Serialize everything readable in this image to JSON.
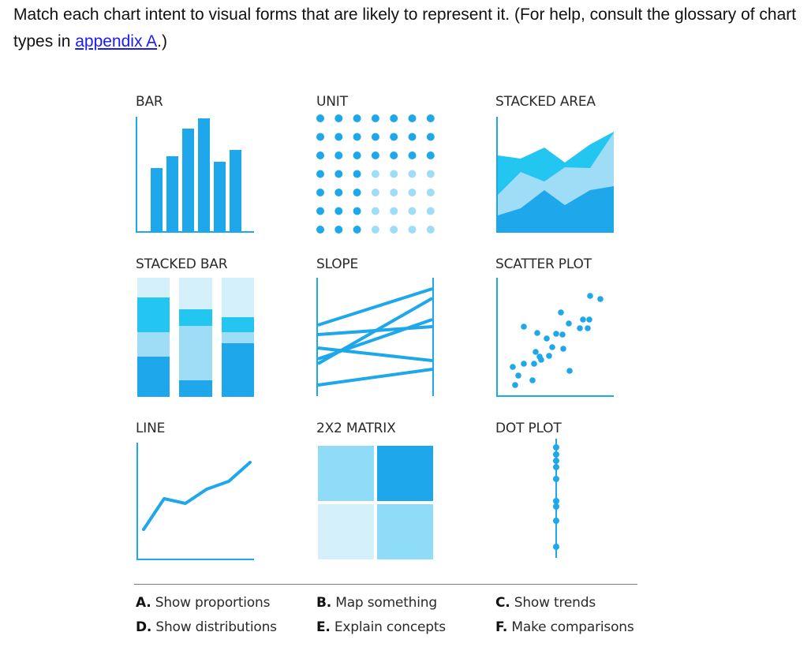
{
  "intro": {
    "text_before": "Match each chart intent to visual forms that are likely to represent it. (For help, consult the glossary of chart types in ",
    "link": "appendix A",
    "text_after": ".)"
  },
  "colors": {
    "dark": "#1ea7ea",
    "mid": "#22c6f0",
    "light": "#9fdcf5",
    "pale": "#d4f0fb",
    "axis": "#1ea7ea"
  },
  "tiles": [
    {
      "label": "BAR",
      "icon": "bar-chart-icon"
    },
    {
      "label": "UNIT",
      "icon": "unit-chart-icon"
    },
    {
      "label": "STACKED AREA",
      "icon": "stacked-area-chart-icon"
    },
    {
      "label": "STACKED BAR",
      "icon": "stacked-bar-chart-icon"
    },
    {
      "label": "SLOPE",
      "icon": "slope-chart-icon"
    },
    {
      "label": "SCATTER PLOT",
      "icon": "scatter-plot-icon"
    },
    {
      "label": "LINE",
      "icon": "line-chart-icon"
    },
    {
      "label": "2X2 MATRIX",
      "icon": "matrix-chart-icon"
    },
    {
      "label": "DOT PLOT",
      "icon": "dot-plot-icon"
    }
  ],
  "intents": [
    {
      "letter": "A.",
      "text": "Show proportions"
    },
    {
      "letter": "B.",
      "text": "Map something"
    },
    {
      "letter": "C.",
      "text": "Show trends"
    },
    {
      "letter": "D.",
      "text": "Show distributions"
    },
    {
      "letter": "E.",
      "text": "Explain concepts"
    },
    {
      "letter": "F.",
      "text": "Make comparisons"
    }
  ]
}
